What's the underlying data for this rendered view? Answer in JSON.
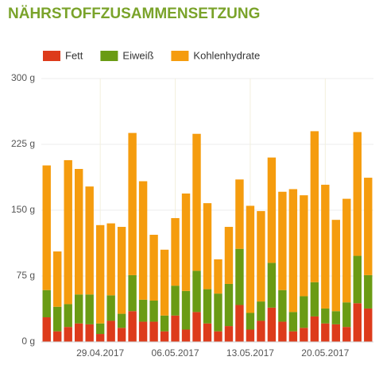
{
  "chart_data": {
    "type": "stacked-bar",
    "title": "NÄHRSTOFFZUSAMMENSETZUNG",
    "categories": [
      null,
      null,
      null,
      null,
      null,
      "29.04.2017",
      null,
      null,
      null,
      null,
      null,
      null,
      "06.05.2017",
      null,
      null,
      null,
      null,
      null,
      null,
      "13.05.2017",
      null,
      null,
      null,
      null,
      null,
      null,
      "20.05.2017",
      null,
      null,
      null,
      null
    ],
    "series": [
      {
        "name": "Fett",
        "color": "#dd3b1b",
        "values": [
          28,
          12,
          17,
          21,
          20,
          9,
          24,
          16,
          35,
          23,
          23,
          12,
          30,
          14,
          34,
          21,
          12,
          18,
          42,
          14,
          24,
          39,
          23,
          12,
          16,
          29,
          21,
          20,
          17,
          44,
          38
        ]
      },
      {
        "name": "Eiweiß",
        "color": "#6a9b14",
        "values": [
          31,
          28,
          26,
          33,
          34,
          12,
          29,
          16,
          41,
          25,
          24,
          18,
          34,
          44,
          47,
          39,
          43,
          48,
          64,
          19,
          22,
          51,
          36,
          22,
          36,
          39,
          17,
          15,
          28,
          54,
          38
        ]
      },
      {
        "name": "Kohlenhydrate",
        "color": "#f59c0e",
        "values": [
          142,
          63,
          164,
          143,
          123,
          112,
          82,
          99,
          162,
          135,
          75,
          75,
          77,
          111,
          156,
          98,
          39,
          65,
          79,
          122,
          103,
          120,
          112,
          140,
          115,
          172,
          141,
          104,
          118,
          141,
          111
        ]
      }
    ],
    "ylim": [
      0,
      300
    ],
    "yticks": [
      {
        "value": 0,
        "label": "0 g"
      },
      {
        "value": 75,
        "label": "75 g"
      },
      {
        "value": 150,
        "label": "150 g"
      },
      {
        "value": 225,
        "label": "225 g"
      },
      {
        "value": 300,
        "label": "300 g"
      }
    ],
    "grid": true,
    "legend": "top-left"
  }
}
